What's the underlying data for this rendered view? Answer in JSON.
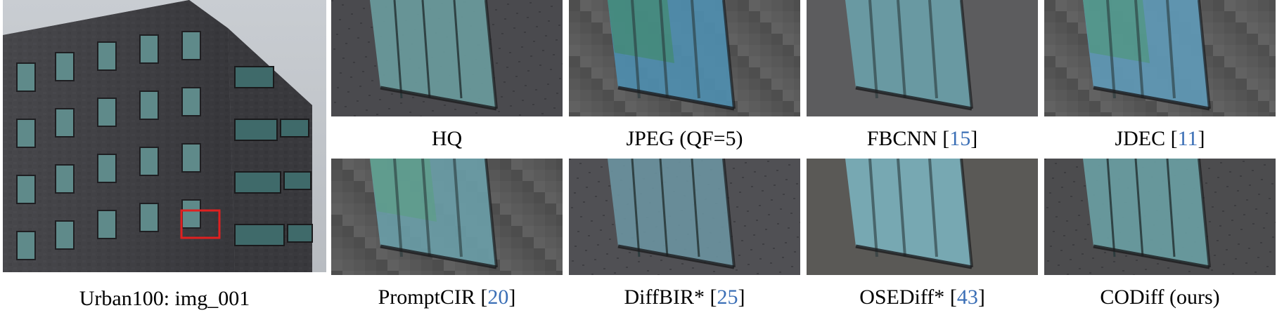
{
  "figure": {
    "main": {
      "caption": "Urban100: img_001"
    },
    "crops": [
      {
        "method": "HQ",
        "ref": ""
      },
      {
        "method": "JPEG (QF=5)",
        "ref": ""
      },
      {
        "method": "FBCNN",
        "ref": "15"
      },
      {
        "method": "JDEC",
        "ref": "11"
      },
      {
        "method": "PromptCIR",
        "ref": "20"
      },
      {
        "method": "DiffBIR*",
        "ref": "25"
      },
      {
        "method": "OSEDiff*",
        "ref": "43"
      },
      {
        "method": "CODiff (ours)",
        "ref": ""
      }
    ]
  },
  "colors": {
    "highlight_box": "#e02020",
    "citation": "#3b6fb6"
  }
}
